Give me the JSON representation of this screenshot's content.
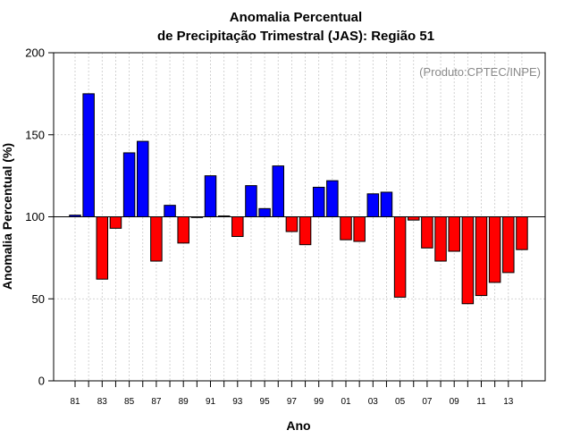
{
  "chart_data": {
    "type": "bar",
    "title": "Anomalia Percentual",
    "subtitle": "de Precipitação Trimestral (JAS): Região 51",
    "xlabel": "Ano",
    "ylabel": "Anomalia Percentual (%)",
    "credit": "(Produto:CPTEC/INPE)",
    "ylim": [
      0,
      200
    ],
    "yticks": [
      0,
      50,
      100,
      150,
      200
    ],
    "baseline": 100,
    "grid": true,
    "categories": [
      "81",
      "82",
      "83",
      "84",
      "85",
      "86",
      "87",
      "88",
      "89",
      "90",
      "91",
      "92",
      "93",
      "94",
      "95",
      "96",
      "97",
      "98",
      "99",
      "00",
      "01",
      "02",
      "03",
      "04",
      "05",
      "06",
      "07",
      "08",
      "09",
      "10",
      "11",
      "12",
      "13",
      "14"
    ],
    "xtick_labels": [
      "81",
      "83",
      "85",
      "87",
      "89",
      "91",
      "93",
      "95",
      "97",
      "99",
      "01",
      "03",
      "05",
      "07",
      "09",
      "11",
      "13"
    ],
    "values": [
      101,
      175,
      62,
      93,
      139,
      146,
      73,
      107,
      84,
      100,
      125,
      100.5,
      88,
      119,
      105,
      131,
      91,
      83,
      118,
      122,
      86,
      85,
      114,
      115,
      51,
      98,
      81,
      73,
      79,
      47,
      52,
      60,
      66,
      80
    ],
    "colors": {
      "above": "#0000ff",
      "below": "#ff0000"
    }
  }
}
